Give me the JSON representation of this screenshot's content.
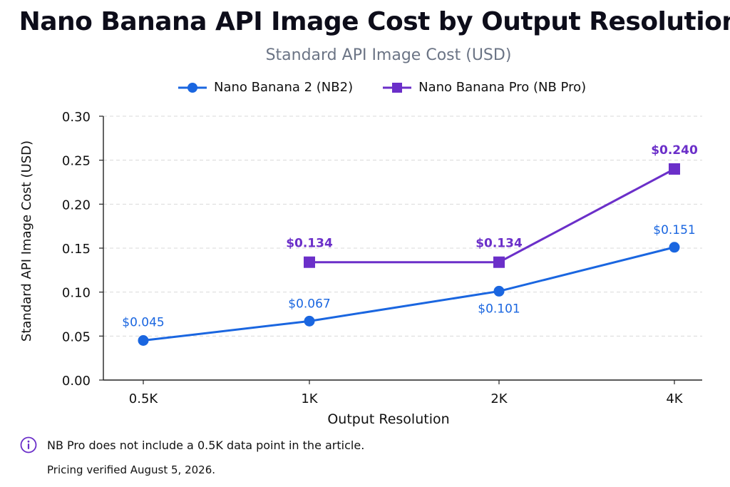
{
  "chart_data": {
    "type": "line",
    "title": "Nano Banana API Image Cost by Output Resolution",
    "subtitle": "Standard API Image Cost (USD)",
    "xlabel": "Output Resolution",
    "ylabel": "Standard API Image Cost (USD)",
    "categories": [
      "0.5K",
      "1K",
      "2K",
      "4K"
    ],
    "ylim": [
      0,
      0.3
    ],
    "yticks": [
      "0.00",
      "0.05",
      "0.10",
      "0.15",
      "0.20",
      "0.25",
      "0.30"
    ],
    "grid": true,
    "legend_position": "top",
    "series": [
      {
        "name": "Nano Banana 2 (NB2)",
        "color": "#1a66e0",
        "marker": "circle",
        "values": [
          0.045,
          0.067,
          0.101,
          0.151
        ],
        "labels": [
          "$0.045",
          "$0.067",
          "$0.101",
          "$0.151"
        ]
      },
      {
        "name": "Nano Banana Pro (NB Pro)",
        "color": "#6b2fc9",
        "marker": "square",
        "values": [
          null,
          0.134,
          0.134,
          0.24
        ],
        "labels": [
          "",
          "$0.134",
          "$0.134",
          "$0.240"
        ]
      }
    ]
  },
  "footer": {
    "note": "NB Pro does not include a 0.5K data point in the article.",
    "verified": "Pricing verified August 5, 2026."
  }
}
